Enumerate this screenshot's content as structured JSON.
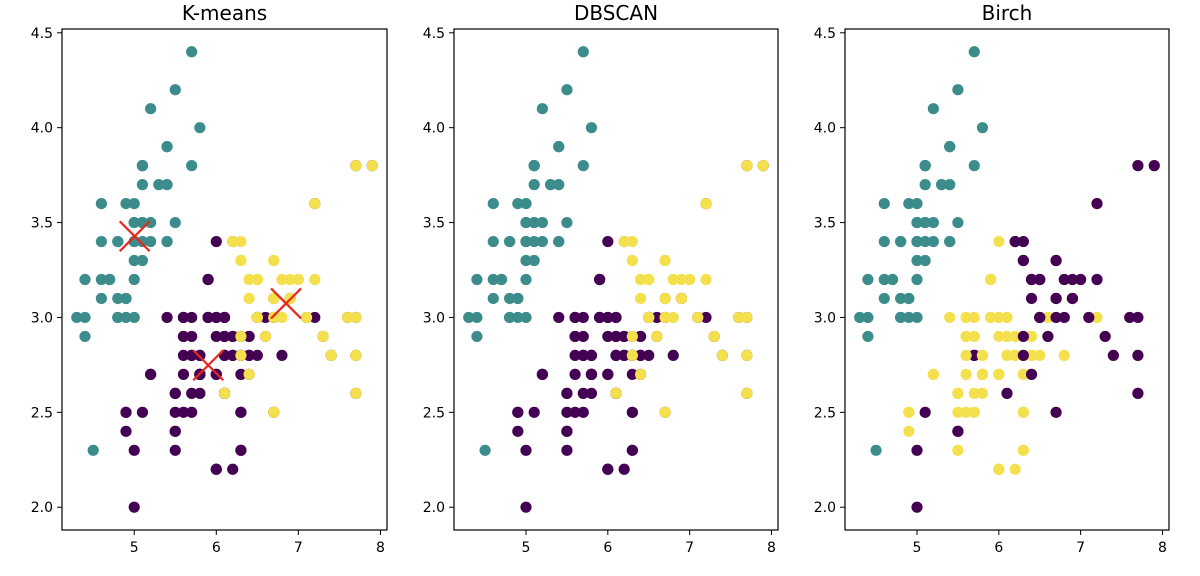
{
  "colors": {
    "purple": "#440154",
    "teal": "#3b8c8b",
    "yellow": "#f4e04d",
    "centroid": "#e8261c"
  },
  "chart_data": [
    {
      "type": "scatter",
      "title": "K-means",
      "xlabel": "",
      "ylabel": "",
      "xlim": [
        4.12,
        8.08
      ],
      "ylim": [
        1.88,
        4.52
      ],
      "xticks": [
        "5",
        "6",
        "7",
        "8"
      ],
      "yticks": [
        "2.0",
        "2.5",
        "3.0",
        "3.5",
        "4.0",
        "4.5"
      ],
      "grid": false,
      "color_by_cluster": {
        "purple": "purple",
        "teal": "teal",
        "yellow": "yellow"
      },
      "centroids": [
        {
          "x": 5.006,
          "y": 3.428
        },
        {
          "x": 5.902,
          "y": 2.748
        },
        {
          "x": 6.85,
          "y": 3.074
        }
      ]
    },
    {
      "type": "scatter",
      "title": "DBSCAN",
      "xlabel": "",
      "ylabel": "",
      "xlim": [
        4.12,
        8.08
      ],
      "ylim": [
        1.88,
        4.52
      ],
      "xticks": [
        "5",
        "6",
        "7",
        "8"
      ],
      "yticks": [
        "2.0",
        "2.5",
        "3.0",
        "3.5",
        "4.0",
        "4.5"
      ],
      "grid": false,
      "color_by_cluster": {
        "purple": "purple",
        "teal": "teal",
        "yellow": "yellow"
      }
    },
    {
      "type": "scatter",
      "title": "Birch",
      "xlabel": "",
      "ylabel": "",
      "xlim": [
        4.12,
        8.08
      ],
      "ylim": [
        1.88,
        4.52
      ],
      "xticks": [
        "5",
        "6",
        "7",
        "8"
      ],
      "yticks": [
        "2.0",
        "2.5",
        "3.0",
        "3.5",
        "4.0",
        "4.5"
      ],
      "grid": false,
      "color_by_cluster": {
        "purple": "yellow",
        "teal": "teal",
        "yellow": "purple"
      },
      "color_override": [
        {
          "x": 5.0,
          "y": 2.0,
          "cluster": "purple"
        },
        {
          "x": 5.0,
          "y": 2.3,
          "cluster": "purple"
        },
        {
          "x": 5.7,
          "y": 2.8,
          "cluster": "purple"
        },
        {
          "x": 5.5,
          "y": 2.4,
          "cluster": "purple"
        },
        {
          "x": 5.1,
          "y": 2.5,
          "cluster": "purple"
        }
      ]
    }
  ],
  "points": [
    {
      "x": 5.1,
      "y": 3.5,
      "c": "teal"
    },
    {
      "x": 4.9,
      "y": 3.0,
      "c": "teal"
    },
    {
      "x": 4.7,
      "y": 3.2,
      "c": "teal"
    },
    {
      "x": 4.6,
      "y": 3.1,
      "c": "teal"
    },
    {
      "x": 5.0,
      "y": 3.6,
      "c": "teal"
    },
    {
      "x": 5.4,
      "y": 3.9,
      "c": "teal"
    },
    {
      "x": 4.6,
      "y": 3.4,
      "c": "teal"
    },
    {
      "x": 5.0,
      "y": 3.4,
      "c": "teal"
    },
    {
      "x": 4.4,
      "y": 2.9,
      "c": "teal"
    },
    {
      "x": 4.9,
      "y": 3.1,
      "c": "teal"
    },
    {
      "x": 5.4,
      "y": 3.7,
      "c": "teal"
    },
    {
      "x": 4.8,
      "y": 3.4,
      "c": "teal"
    },
    {
      "x": 4.8,
      "y": 3.0,
      "c": "teal"
    },
    {
      "x": 4.3,
      "y": 3.0,
      "c": "teal"
    },
    {
      "x": 5.8,
      "y": 4.0,
      "c": "teal"
    },
    {
      "x": 5.7,
      "y": 4.4,
      "c": "teal"
    },
    {
      "x": 5.4,
      "y": 3.9,
      "c": "teal"
    },
    {
      "x": 5.1,
      "y": 3.5,
      "c": "teal"
    },
    {
      "x": 5.7,
      "y": 3.8,
      "c": "teal"
    },
    {
      "x": 5.1,
      "y": 3.8,
      "c": "teal"
    },
    {
      "x": 5.4,
      "y": 3.4,
      "c": "teal"
    },
    {
      "x": 5.1,
      "y": 3.7,
      "c": "teal"
    },
    {
      "x": 4.6,
      "y": 3.6,
      "c": "teal"
    },
    {
      "x": 5.1,
      "y": 3.3,
      "c": "teal"
    },
    {
      "x": 4.8,
      "y": 3.4,
      "c": "teal"
    },
    {
      "x": 5.0,
      "y": 3.0,
      "c": "teal"
    },
    {
      "x": 5.0,
      "y": 3.4,
      "c": "teal"
    },
    {
      "x": 5.2,
      "y": 3.5,
      "c": "teal"
    },
    {
      "x": 5.2,
      "y": 3.4,
      "c": "teal"
    },
    {
      "x": 4.7,
      "y": 3.2,
      "c": "teal"
    },
    {
      "x": 4.8,
      "y": 3.1,
      "c": "teal"
    },
    {
      "x": 5.4,
      "y": 3.4,
      "c": "teal"
    },
    {
      "x": 5.2,
      "y": 4.1,
      "c": "teal"
    },
    {
      "x": 5.5,
      "y": 4.2,
      "c": "teal"
    },
    {
      "x": 4.9,
      "y": 3.1,
      "c": "teal"
    },
    {
      "x": 5.0,
      "y": 3.2,
      "c": "teal"
    },
    {
      "x": 5.5,
      "y": 3.5,
      "c": "teal"
    },
    {
      "x": 4.9,
      "y": 3.6,
      "c": "teal"
    },
    {
      "x": 4.4,
      "y": 3.0,
      "c": "teal"
    },
    {
      "x": 5.1,
      "y": 3.4,
      "c": "teal"
    },
    {
      "x": 5.0,
      "y": 3.5,
      "c": "teal"
    },
    {
      "x": 4.5,
      "y": 2.3,
      "c": "teal"
    },
    {
      "x": 4.4,
      "y": 3.2,
      "c": "teal"
    },
    {
      "x": 5.0,
      "y": 3.5,
      "c": "teal"
    },
    {
      "x": 5.1,
      "y": 3.8,
      "c": "teal"
    },
    {
      "x": 4.8,
      "y": 3.0,
      "c": "teal"
    },
    {
      "x": 5.1,
      "y": 3.8,
      "c": "teal"
    },
    {
      "x": 4.6,
      "y": 3.2,
      "c": "teal"
    },
    {
      "x": 5.3,
      "y": 3.7,
      "c": "teal"
    },
    {
      "x": 5.0,
      "y": 3.3,
      "c": "teal"
    },
    {
      "x": 5.5,
      "y": 2.3,
      "c": "purple"
    },
    {
      "x": 5.7,
      "y": 2.8,
      "c": "purple"
    },
    {
      "x": 4.9,
      "y": 2.4,
      "c": "purple"
    },
    {
      "x": 5.2,
      "y": 2.7,
      "c": "purple"
    },
    {
      "x": 5.0,
      "y": 2.0,
      "c": "purple"
    },
    {
      "x": 5.9,
      "y": 3.0,
      "c": "purple"
    },
    {
      "x": 6.0,
      "y": 2.2,
      "c": "purple"
    },
    {
      "x": 6.1,
      "y": 2.9,
      "c": "purple"
    },
    {
      "x": 5.6,
      "y": 2.9,
      "c": "purple"
    },
    {
      "x": 5.6,
      "y": 3.0,
      "c": "purple"
    },
    {
      "x": 5.8,
      "y": 2.7,
      "c": "purple"
    },
    {
      "x": 6.2,
      "y": 2.2,
      "c": "purple"
    },
    {
      "x": 5.6,
      "y": 2.5,
      "c": "purple"
    },
    {
      "x": 5.9,
      "y": 3.2,
      "c": "purple"
    },
    {
      "x": 6.1,
      "y": 2.8,
      "c": "purple"
    },
    {
      "x": 6.4,
      "y": 2.9,
      "c": "purple"
    },
    {
      "x": 6.6,
      "y": 3.0,
      "c": "purple"
    },
    {
      "x": 6.0,
      "y": 2.9,
      "c": "purple"
    },
    {
      "x": 5.7,
      "y": 2.6,
      "c": "purple"
    },
    {
      "x": 5.5,
      "y": 2.4,
      "c": "purple"
    },
    {
      "x": 5.5,
      "y": 2.4,
      "c": "purple"
    },
    {
      "x": 5.8,
      "y": 2.7,
      "c": "purple"
    },
    {
      "x": 6.0,
      "y": 2.7,
      "c": "purple"
    },
    {
      "x": 5.4,
      "y": 3.0,
      "c": "purple"
    },
    {
      "x": 6.0,
      "y": 3.4,
      "c": "purple"
    },
    {
      "x": 6.3,
      "y": 2.3,
      "c": "purple"
    },
    {
      "x": 5.6,
      "y": 3.0,
      "c": "purple"
    },
    {
      "x": 5.5,
      "y": 2.5,
      "c": "purple"
    },
    {
      "x": 5.5,
      "y": 2.6,
      "c": "purple"
    },
    {
      "x": 6.1,
      "y": 3.0,
      "c": "purple"
    },
    {
      "x": 5.8,
      "y": 2.6,
      "c": "purple"
    },
    {
      "x": 5.0,
      "y": 2.3,
      "c": "purple"
    },
    {
      "x": 5.6,
      "y": 2.7,
      "c": "purple"
    },
    {
      "x": 5.7,
      "y": 3.0,
      "c": "purple"
    },
    {
      "x": 5.7,
      "y": 2.9,
      "c": "purple"
    },
    {
      "x": 6.2,
      "y": 2.9,
      "c": "purple"
    },
    {
      "x": 5.1,
      "y": 2.5,
      "c": "purple"
    },
    {
      "x": 5.7,
      "y": 2.8,
      "c": "purple"
    },
    {
      "x": 5.8,
      "y": 2.7,
      "c": "purple"
    },
    {
      "x": 4.9,
      "y": 2.5,
      "c": "purple"
    },
    {
      "x": 6.2,
      "y": 2.8,
      "c": "purple"
    },
    {
      "x": 6.1,
      "y": 2.6,
      "c": "purple"
    },
    {
      "x": 6.3,
      "y": 2.5,
      "c": "purple"
    },
    {
      "x": 5.6,
      "y": 2.8,
      "c": "purple"
    },
    {
      "x": 6.3,
      "y": 2.8,
      "c": "purple"
    },
    {
      "x": 6.0,
      "y": 3.0,
      "c": "purple"
    },
    {
      "x": 5.8,
      "y": 2.8,
      "c": "purple"
    },
    {
      "x": 6.4,
      "y": 2.7,
      "c": "purple"
    },
    {
      "x": 6.5,
      "y": 2.8,
      "c": "purple"
    },
    {
      "x": 5.9,
      "y": 3.0,
      "c": "purple"
    },
    {
      "x": 5.8,
      "y": 2.7,
      "c": "purple"
    },
    {
      "x": 6.8,
      "y": 2.8,
      "c": "purple"
    },
    {
      "x": 7.1,
      "y": 3.0,
      "c": "purple"
    },
    {
      "x": 6.3,
      "y": 2.9,
      "c": "purple"
    },
    {
      "x": 6.5,
      "y": 3.0,
      "c": "purple"
    },
    {
      "x": 7.6,
      "y": 3.0,
      "c": "purple"
    },
    {
      "x": 4.9,
      "y": 2.5,
      "c": "purple"
    },
    {
      "x": 6.7,
      "y": 2.5,
      "c": "purple"
    },
    {
      "x": 6.5,
      "y": 3.0,
      "c": "purple"
    },
    {
      "x": 5.9,
      "y": 3.0,
      "c": "purple"
    },
    {
      "x": 6.2,
      "y": 2.8,
      "c": "purple"
    },
    {
      "x": 7.2,
      "y": 3.0,
      "c": "purple"
    },
    {
      "x": 6.1,
      "y": 3.0,
      "c": "purple"
    },
    {
      "x": 6.4,
      "y": 2.8,
      "c": "purple"
    },
    {
      "x": 6.3,
      "y": 2.8,
      "c": "purple"
    },
    {
      "x": 6.1,
      "y": 2.6,
      "c": "purple"
    },
    {
      "x": 6.0,
      "y": 3.0,
      "c": "purple"
    },
    {
      "x": 6.3,
      "y": 2.5,
      "c": "purple"
    },
    {
      "x": 6.5,
      "y": 3.0,
      "c": "purple"
    },
    {
      "x": 6.2,
      "y": 3.4,
      "c": "purple"
    },
    {
      "x": 6.0,
      "y": 2.2,
      "c": "purple"
    },
    {
      "x": 5.8,
      "y": 2.8,
      "c": "purple"
    },
    {
      "x": 6.4,
      "y": 2.8,
      "c": "purple"
    },
    {
      "x": 6.9,
      "y": 3.1,
      "c": "purple"
    },
    {
      "x": 6.7,
      "y": 3.0,
      "c": "purple"
    },
    {
      "x": 5.6,
      "y": 2.9,
      "c": "purple"
    },
    {
      "x": 5.7,
      "y": 2.5,
      "c": "purple"
    },
    {
      "x": 6.6,
      "y": 2.9,
      "c": "purple"
    },
    {
      "x": 6.7,
      "y": 3.1,
      "c": "purple"
    },
    {
      "x": 6.3,
      "y": 2.7,
      "c": "purple"
    },
    {
      "x": 5.9,
      "y": 3.2,
      "c": "purple"
    },
    {
      "x": 6.2,
      "y": 2.9,
      "c": "purple"
    },
    {
      "x": 6.1,
      "y": 2.8,
      "c": "purple"
    },
    {
      "x": 6.0,
      "y": 2.7,
      "c": "purple"
    },
    {
      "x": 5.5,
      "y": 2.6,
      "c": "purple"
    },
    {
      "x": 5.2,
      "y": 2.7,
      "c": "purple"
    },
    {
      "x": 6.3,
      "y": 2.3,
      "c": "purple"
    },
    {
      "x": 6.4,
      "y": 2.9,
      "c": "purple"
    },
    {
      "x": 6.1,
      "y": 2.9,
      "c": "purple"
    },
    {
      "x": 6.9,
      "y": 3.1,
      "c": "purple"
    },
    {
      "x": 7.7,
      "y": 2.6,
      "c": "purple"
    },
    {
      "x": 7.7,
      "y": 2.8,
      "c": "purple"
    },
    {
      "x": 7.7,
      "y": 3.0,
      "c": "purple"
    },
    {
      "x": 7.2,
      "y": 3.6,
      "c": "purple"
    },
    {
      "x": 7.7,
      "y": 3.8,
      "c": "purple"
    },
    {
      "x": 7.9,
      "y": 3.8,
      "c": "purple"
    },
    {
      "x": 7.4,
      "y": 2.8,
      "c": "purple"
    },
    {
      "x": 7.3,
      "y": 2.9,
      "c": "purple"
    },
    {
      "x": 7.0,
      "y": 3.2,
      "c": "yellow"
    },
    {
      "x": 6.4,
      "y": 3.2,
      "c": "yellow"
    },
    {
      "x": 6.9,
      "y": 3.1,
      "c": "yellow"
    },
    {
      "x": 6.3,
      "y": 3.3,
      "c": "yellow"
    },
    {
      "x": 6.6,
      "y": 2.9,
      "c": "yellow"
    },
    {
      "x": 6.7,
      "y": 3.1,
      "c": "yellow"
    },
    {
      "x": 6.2,
      "y": 3.4,
      "c": "yellow"
    },
    {
      "x": 6.3,
      "y": 3.4,
      "c": "yellow"
    },
    {
      "x": 6.7,
      "y": 3.3,
      "c": "yellow"
    },
    {
      "x": 6.9,
      "y": 3.2,
      "c": "yellow"
    },
    {
      "x": 7.1,
      "y": 3.0,
      "c": "yellow"
    },
    {
      "x": 6.5,
      "y": 3.2,
      "c": "yellow"
    },
    {
      "x": 6.4,
      "y": 2.7,
      "c": "yellow"
    },
    {
      "x": 6.8,
      "y": 3.0,
      "c": "yellow"
    },
    {
      "x": 7.2,
      "y": 3.2,
      "c": "yellow"
    },
    {
      "x": 7.2,
      "y": 3.6,
      "c": "yellow"
    },
    {
      "x": 6.7,
      "y": 3.0,
      "c": "yellow"
    },
    {
      "x": 7.7,
      "y": 3.8,
      "c": "yellow"
    },
    {
      "x": 7.7,
      "y": 2.6,
      "c": "yellow"
    },
    {
      "x": 7.9,
      "y": 3.8,
      "c": "yellow"
    },
    {
      "x": 7.6,
      "y": 3.0,
      "c": "yellow"
    },
    {
      "x": 7.4,
      "y": 2.8,
      "c": "yellow"
    },
    {
      "x": 7.3,
      "y": 2.9,
      "c": "yellow"
    },
    {
      "x": 7.7,
      "y": 2.8,
      "c": "yellow"
    },
    {
      "x": 7.7,
      "y": 3.0,
      "c": "yellow"
    },
    {
      "x": 6.7,
      "y": 2.5,
      "c": "yellow"
    },
    {
      "x": 6.1,
      "y": 2.6,
      "c": "yellow"
    },
    {
      "x": 6.3,
      "y": 2.9,
      "c": "yellow"
    },
    {
      "x": 6.5,
      "y": 3.2,
      "c": "yellow"
    },
    {
      "x": 6.3,
      "y": 3.3,
      "c": "yellow"
    },
    {
      "x": 6.5,
      "y": 3.0,
      "c": "yellow"
    },
    {
      "x": 6.8,
      "y": 3.2,
      "c": "yellow"
    },
    {
      "x": 6.7,
      "y": 3.3,
      "c": "yellow"
    },
    {
      "x": 6.3,
      "y": 2.8,
      "c": "yellow"
    },
    {
      "x": 6.4,
      "y": 3.1,
      "c": "yellow"
    },
    {
      "x": 6.9,
      "y": 3.1,
      "c": "yellow"
    },
    {
      "x": 6.7,
      "y": 3.1,
      "c": "yellow"
    },
    {
      "x": 6.2,
      "y": 3.4,
      "c": "yellow"
    },
    {
      "x": 6.4,
      "y": 3.2,
      "c": "yellow"
    },
    {
      "x": 6.5,
      "y": 3.0,
      "c": "yellow"
    }
  ]
}
